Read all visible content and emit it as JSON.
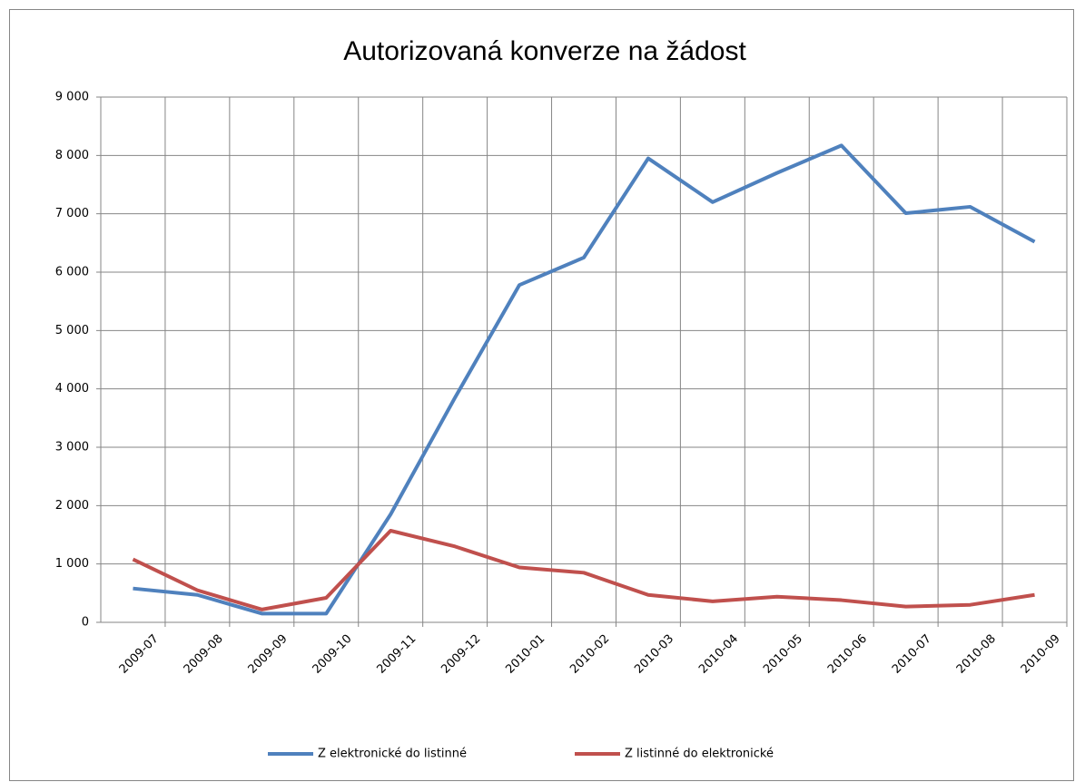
{
  "chart_data": {
    "type": "line",
    "title": "Autorizovaná konverze na žádost",
    "categories": [
      "2009-07",
      "2009-08",
      "2009-09",
      "2009-10",
      "2009-11",
      "2009-12",
      "2010-01",
      "2010-02",
      "2010-03",
      "2010-04",
      "2010-05",
      "2010-06",
      "2010-07",
      "2010-08",
      "2010-09"
    ],
    "series": [
      {
        "name": "Z elektronické do listinné",
        "color": "#4f81bd",
        "values": [
          580,
          470,
          150,
          150,
          1850,
          3850,
          5780,
          6250,
          7950,
          7200,
          7700,
          8170,
          7010,
          7120,
          6520
        ]
      },
      {
        "name": "Z listinné do elektronické",
        "color": "#c0504d",
        "values": [
          1080,
          550,
          220,
          420,
          1570,
          1300,
          940,
          850,
          470,
          360,
          440,
          380,
          270,
          300,
          470
        ]
      }
    ],
    "ylim": [
      0,
      9000
    ],
    "yticks": [
      0,
      {
        "value": 1000,
        "label": "1 000"
      },
      {
        "value": 2000,
        "label": "2 000"
      },
      {
        "value": 3000,
        "label": "3 000"
      },
      {
        "value": 4000,
        "label": "4 000"
      },
      {
        "value": 5000,
        "label": "5 000"
      },
      {
        "value": 6000,
        "label": "6 000"
      },
      {
        "value": 7000,
        "label": "7 000"
      },
      {
        "value": 8000,
        "label": "8 000"
      },
      {
        "value": 9000,
        "label": "9 000"
      }
    ],
    "grid": true,
    "legend": "bottom"
  }
}
